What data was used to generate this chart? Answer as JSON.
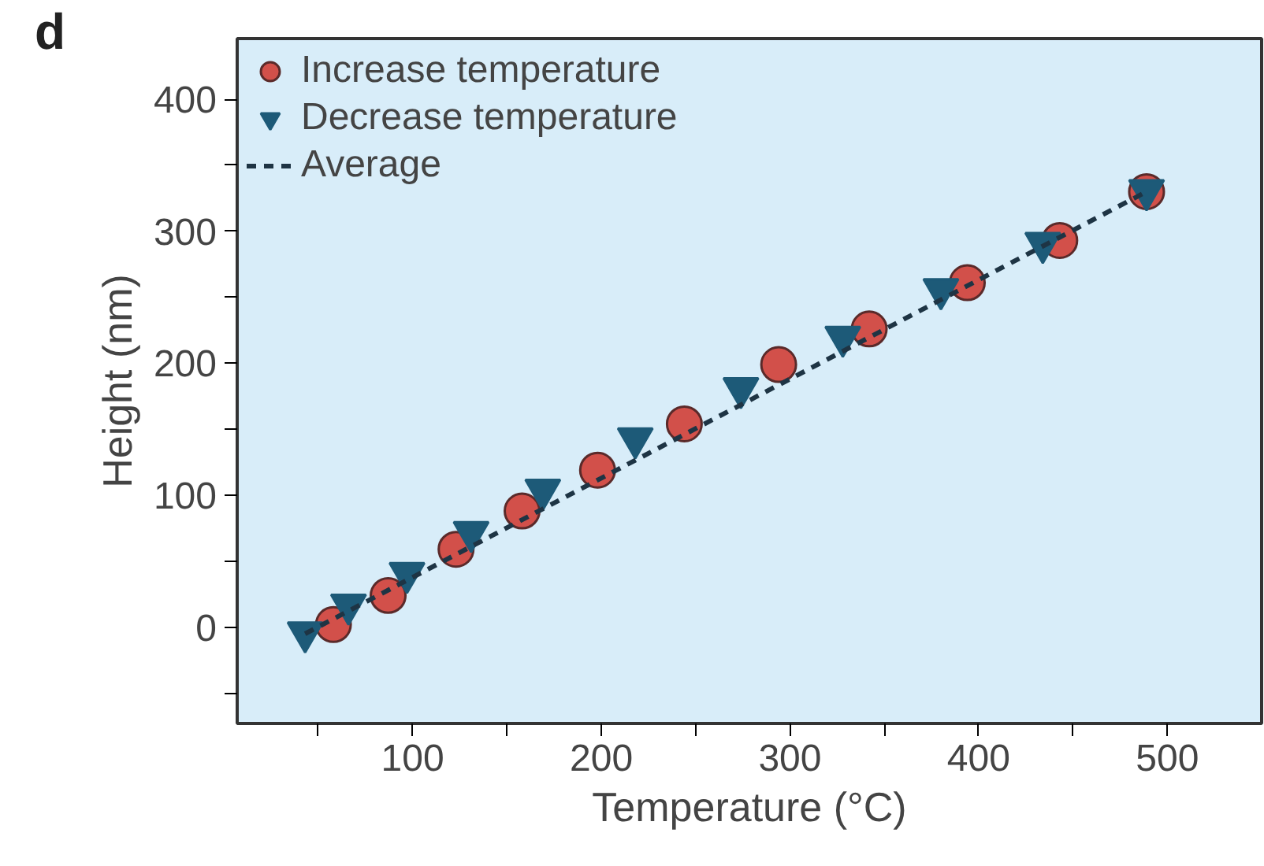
{
  "chart_data": {
    "type": "scatter",
    "xlabel": "Temperature (°C)",
    "ylabel": "Height (nm)",
    "annotations": [
      "d"
    ],
    "xlim": [
      7,
      550
    ],
    "ylim": [
      -73,
      446
    ],
    "xticks": [
      {
        "value": 50,
        "label": null
      },
      100,
      {
        "value": 150,
        "label": null
      },
      200,
      {
        "value": 250,
        "label": null
      },
      300,
      {
        "value": 350,
        "label": null
      },
      400,
      {
        "value": 450,
        "label": null
      },
      500
    ],
    "yticks": [
      {
        "value": -50,
        "label": null
      },
      0,
      {
        "value": 50,
        "label": null
      },
      100,
      {
        "value": 150,
        "label": null
      },
      200,
      {
        "value": 250,
        "label": null
      },
      300,
      {
        "value": 350,
        "label": null
      },
      400
    ],
    "grid": false,
    "legend": "top left",
    "series": [
      {
        "name": "Increase temperature",
        "marker": "circle",
        "color": "#d2504a",
        "x": [
          58,
          87,
          123,
          158,
          198,
          244,
          294,
          342,
          394,
          443,
          489
        ],
        "values": [
          2,
          24,
          59,
          88,
          119,
          154,
          199,
          226,
          261,
          293,
          330
        ]
      },
      {
        "name": "Decrease temperature",
        "marker": "triangle",
        "color": "#1d5a78",
        "x": [
          43,
          66,
          97,
          131,
          169,
          218,
          274,
          328,
          380,
          434,
          489
        ],
        "values": [
          -4,
          17,
          41,
          72,
          104,
          143,
          181,
          220,
          256,
          291,
          331
        ]
      },
      {
        "name": "Average",
        "type": "line",
        "line_style": "dashed",
        "marker": "none",
        "color": "#1e3444",
        "x": [
          43,
          489
        ],
        "values": [
          -5,
          330
        ]
      }
    ]
  }
}
